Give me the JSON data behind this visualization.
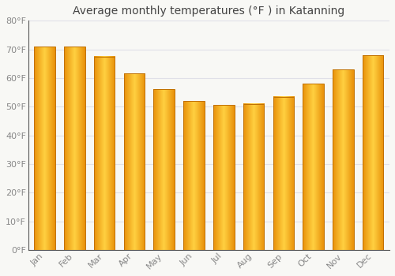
{
  "title": "Average monthly temperatures (°F ) in Katanning",
  "months": [
    "Jan",
    "Feb",
    "Mar",
    "Apr",
    "May",
    "Jun",
    "Jul",
    "Aug",
    "Sep",
    "Oct",
    "Nov",
    "Dec"
  ],
  "values": [
    71,
    71,
    67.5,
    61.5,
    56,
    52,
    50.5,
    51,
    53.5,
    58,
    63,
    68
  ],
  "bar_color_left": "#E8900A",
  "bar_color_center": "#FFD040",
  "bar_color_right": "#E8900A",
  "bar_edge_color": "#C07000",
  "ylim": [
    0,
    80
  ],
  "yticks": [
    0,
    10,
    20,
    30,
    40,
    50,
    60,
    70,
    80
  ],
  "ytick_labels": [
    "0°F",
    "10°F",
    "20°F",
    "30°F",
    "40°F",
    "50°F",
    "60°F",
    "70°F",
    "80°F"
  ],
  "bg_color": "#f8f8f5",
  "grid_color": "#e0e0e8",
  "tick_color": "#888888",
  "title_color": "#444444",
  "title_fontsize": 10,
  "tick_fontsize": 8,
  "bar_width": 0.7
}
